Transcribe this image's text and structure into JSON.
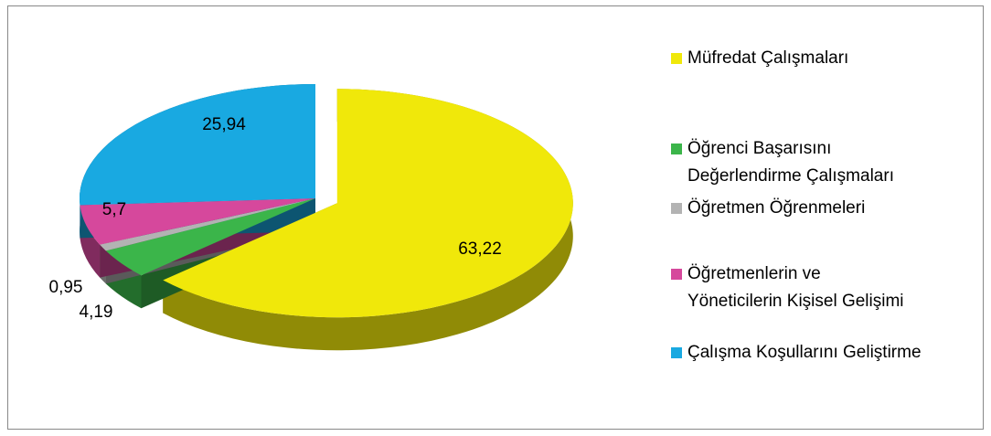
{
  "chart_data": {
    "type": "pie",
    "categories": [
      "Müfredat Çalışmaları",
      "Öğrenci Başarısını\nDeğerlendirme Çalışmaları",
      "Öğretmen Öğrenmeleri",
      "Öğretmenlerin ve\nYöneticilerin Kişisel Gelişimi",
      "Çalışma Koşullarını Geliştirme"
    ],
    "values": [
      63.22,
      4.19,
      0.95,
      5.7,
      25.94
    ],
    "value_labels": [
      "63,22",
      "4,19",
      "0,95",
      "5,7",
      "25,94"
    ],
    "colors": [
      "#f0e80a",
      "#3bb54a",
      "#b3b3b3",
      "#d6489c",
      "#19a9e1"
    ],
    "legend": "right"
  }
}
